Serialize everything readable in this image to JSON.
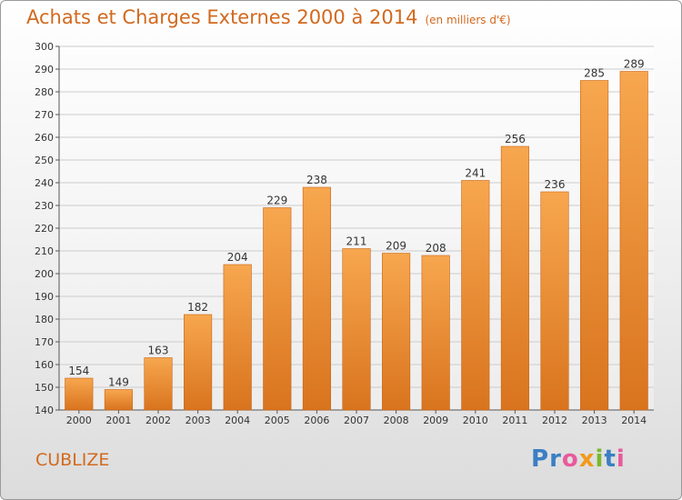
{
  "title": "Achats et Charges Externes 2000 à 2014",
  "subtitle": "(en milliers d'€)",
  "town": "CUBLIZE",
  "logo": {
    "text": "Proxiti",
    "letters": [
      "P",
      "r",
      "o",
      "x",
      "i",
      "t",
      "i"
    ],
    "colors": [
      "#3a7fc4",
      "#3a7fc4",
      "#e85a9b",
      "#f29a1e",
      "#7ab82e",
      "#3a7fc4",
      "#e85a9b"
    ]
  },
  "colors": {
    "bar_light": "#f7a74f",
    "bar_dark": "#d9741e",
    "title": "#d2691e",
    "grid": "#cccccc"
  },
  "chart_data": {
    "type": "bar",
    "title": "Achats et Charges Externes 2000 à 2014",
    "subtitle": "(en milliers d'€)",
    "categories": [
      "2000",
      "2001",
      "2002",
      "2003",
      "2004",
      "2005",
      "2006",
      "2007",
      "2008",
      "2009",
      "2010",
      "2011",
      "2012",
      "2013",
      "2014"
    ],
    "values": [
      154,
      149,
      163,
      182,
      204,
      229,
      238,
      211,
      209,
      208,
      241,
      256,
      236,
      285,
      289
    ],
    "ylim": [
      140,
      300
    ],
    "yticks": [
      140,
      150,
      160,
      170,
      180,
      190,
      200,
      210,
      220,
      230,
      240,
      250,
      260,
      270,
      280,
      290,
      300
    ],
    "grid": true,
    "legend": "none"
  }
}
